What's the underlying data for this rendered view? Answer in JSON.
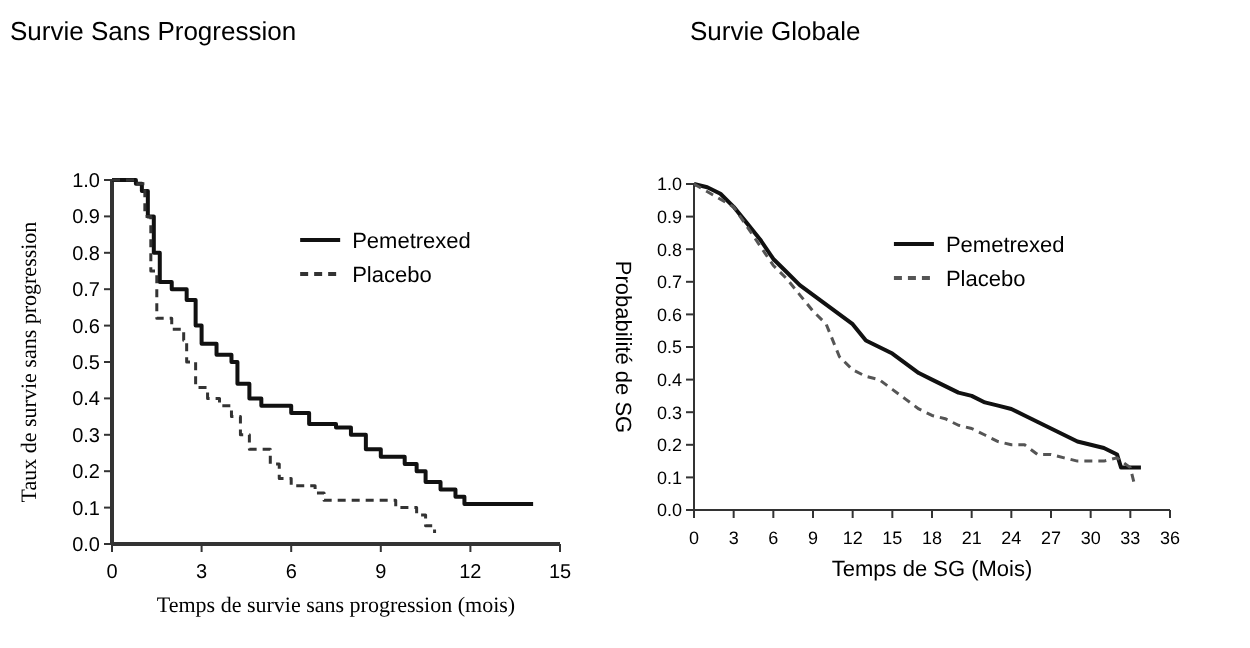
{
  "chart_data": [
    {
      "type": "step",
      "title": "Survie Sans Progression",
      "xlabel": "Temps de survie sans progression (mois)",
      "ylabel": "Taux de survie sans progression",
      "xlim": [
        0,
        15
      ],
      "xticks": [
        0,
        3,
        6,
        9,
        12,
        15
      ],
      "ylim": [
        0,
        1
      ],
      "yticks": [
        {
          "value": 0,
          "label": "0.0"
        },
        {
          "value": 0.1,
          "label": "0.1"
        },
        {
          "value": 0.2,
          "label": "0.2"
        },
        {
          "value": 0.3,
          "label": "0.3"
        },
        {
          "value": 0.4,
          "label": "0.4"
        },
        {
          "value": 0.5,
          "label": "0.5"
        },
        {
          "value": 0.6,
          "label": "0.6"
        },
        {
          "value": 0.7,
          "label": "0.7"
        },
        {
          "value": 0.8,
          "label": "0.8"
        },
        {
          "value": 0.9,
          "label": "0.9"
        },
        {
          "value": 1,
          "label": "1.0"
        }
      ],
      "legend": "top right",
      "series": [
        {
          "name": "Pemetrexed",
          "color": "#111111",
          "line_style": "solid",
          "x": [
            0,
            0.8,
            1.0,
            1.2,
            1.4,
            1.6,
            2.0,
            2.5,
            2.8,
            3.0,
            3.5,
            4.0,
            4.2,
            4.6,
            5.0,
            6.0,
            6.6,
            7.5,
            8.0,
            8.5,
            9.0,
            9.8,
            10.2,
            10.5,
            11.0,
            11.5,
            11.8,
            14.1
          ],
          "values": [
            1.0,
            0.99,
            0.97,
            0.9,
            0.8,
            0.72,
            0.7,
            0.67,
            0.6,
            0.55,
            0.52,
            0.5,
            0.44,
            0.4,
            0.38,
            0.36,
            0.33,
            0.32,
            0.3,
            0.26,
            0.24,
            0.22,
            0.2,
            0.17,
            0.15,
            0.13,
            0.11,
            0.11
          ]
        },
        {
          "name": "Placebo",
          "color": "#333333",
          "line_style": "dashed",
          "x": [
            0,
            0.8,
            1.1,
            1.3,
            1.5,
            2.0,
            2.4,
            2.5,
            2.8,
            3.2,
            3.6,
            4.0,
            4.3,
            4.6,
            5.3,
            5.6,
            6.0,
            6.8,
            7.1,
            8.5,
            9.5,
            10.2,
            10.5,
            10.8
          ],
          "values": [
            1.0,
            0.99,
            0.9,
            0.75,
            0.62,
            0.59,
            0.56,
            0.5,
            0.43,
            0.4,
            0.38,
            0.35,
            0.3,
            0.26,
            0.22,
            0.18,
            0.16,
            0.14,
            0.12,
            0.12,
            0.1,
            0.08,
            0.05,
            0.03
          ]
        }
      ]
    },
    {
      "type": "line",
      "title": "Survie Globale",
      "xlabel": "Temps de SG (Mois)",
      "ylabel": "Probabilité de SG",
      "xlim": [
        0,
        36
      ],
      "xticks": [
        0,
        3,
        6,
        9,
        12,
        15,
        18,
        21,
        24,
        27,
        30,
        33,
        36
      ],
      "ylim": [
        0,
        1
      ],
      "yticks": [
        {
          "value": 0,
          "label": "0.0"
        },
        {
          "value": 0.1,
          "label": "0.1"
        },
        {
          "value": 0.2,
          "label": "0.2"
        },
        {
          "value": 0.3,
          "label": "0.3"
        },
        {
          "value": 0.4,
          "label": "0.4"
        },
        {
          "value": 0.5,
          "label": "0.5"
        },
        {
          "value": 0.6,
          "label": "0.6"
        },
        {
          "value": 0.7,
          "label": "0.7"
        },
        {
          "value": 0.8,
          "label": "0.8"
        },
        {
          "value": 0.9,
          "label": "0.9"
        },
        {
          "value": 1,
          "label": "1.0"
        }
      ],
      "legend": "top right",
      "series": [
        {
          "name": "Pemetrexed",
          "color": "#111111",
          "line_style": "solid",
          "x": [
            0,
            1,
            2,
            3,
            4,
            5,
            6,
            7,
            8,
            9,
            10,
            11,
            12,
            13,
            14,
            15,
            16,
            17,
            18,
            19,
            20,
            21,
            22,
            23,
            24,
            25,
            26,
            27,
            28,
            29,
            30,
            31,
            32,
            32.3,
            33.8
          ],
          "values": [
            1.0,
            0.99,
            0.97,
            0.93,
            0.88,
            0.83,
            0.77,
            0.73,
            0.69,
            0.66,
            0.63,
            0.6,
            0.57,
            0.52,
            0.5,
            0.48,
            0.45,
            0.42,
            0.4,
            0.38,
            0.36,
            0.35,
            0.33,
            0.32,
            0.31,
            0.29,
            0.27,
            0.25,
            0.23,
            0.21,
            0.2,
            0.19,
            0.17,
            0.13,
            0.13
          ]
        },
        {
          "name": "Placebo",
          "color": "#555555",
          "line_style": "dashed",
          "x": [
            0,
            3,
            5,
            6,
            7,
            8,
            9,
            10,
            11,
            12,
            13,
            14,
            15,
            16,
            17,
            18,
            19,
            20,
            21,
            22,
            23,
            24,
            25,
            26,
            27,
            28,
            29,
            31,
            32,
            33,
            33.3
          ],
          "values": [
            1.0,
            0.93,
            0.81,
            0.75,
            0.71,
            0.66,
            0.61,
            0.57,
            0.47,
            0.43,
            0.41,
            0.4,
            0.37,
            0.34,
            0.31,
            0.29,
            0.28,
            0.26,
            0.25,
            0.23,
            0.21,
            0.2,
            0.2,
            0.17,
            0.17,
            0.16,
            0.15,
            0.15,
            0.16,
            0.13,
            0.08
          ]
        }
      ]
    }
  ]
}
